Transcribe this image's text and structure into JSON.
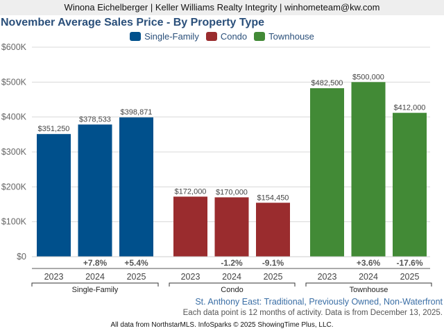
{
  "header": {
    "agent_line": "Winona Eichelberger | Keller Williams Realty Integrity | winhometeam@kw.com"
  },
  "subtitle": "St. Anthony East: Traditional, Previously Owned, Non-Waterfront",
  "note": "Each data point is 12 months of activity. Data is from December 13, 2025.",
  "footer": "All data from NorthstarMLS. InfoSparks © 2025 ShowingTime Plus, LLC.",
  "chart_data": {
    "type": "bar",
    "title": "November Average Sales Price - By Property Type",
    "xlabel": "",
    "ylabel": "",
    "ylim": [
      0,
      600000
    ],
    "yticks": [
      0,
      100000,
      200000,
      300000,
      400000,
      500000,
      600000
    ],
    "ytick_labels": [
      "$0",
      "$100K",
      "$200K",
      "$300K",
      "$400K",
      "$500K",
      "$600K"
    ],
    "grid": true,
    "legend_position": "top-center",
    "categories": [
      "2023",
      "2024",
      "2025"
    ],
    "series": [
      {
        "name": "Single-Family",
        "color": "#00508c",
        "values": [
          351250,
          378533,
          398871
        ],
        "value_labels": [
          "$351,250",
          "$378,533",
          "$398,871"
        ],
        "change_labels": [
          "",
          "+7.8%",
          "+5.4%"
        ]
      },
      {
        "name": "Condo",
        "color": "#9a2c2e",
        "values": [
          172000,
          170000,
          154450
        ],
        "value_labels": [
          "$172,000",
          "$170,000",
          "$154,450"
        ],
        "change_labels": [
          "",
          "-1.2%",
          "-9.1%"
        ]
      },
      {
        "name": "Townhouse",
        "color": "#428a36",
        "values": [
          482500,
          500000,
          412000
        ],
        "value_labels": [
          "$482,500",
          "$500,000",
          "$412,000"
        ],
        "change_labels": [
          "",
          "+3.6%",
          "-17.6%"
        ]
      }
    ]
  }
}
